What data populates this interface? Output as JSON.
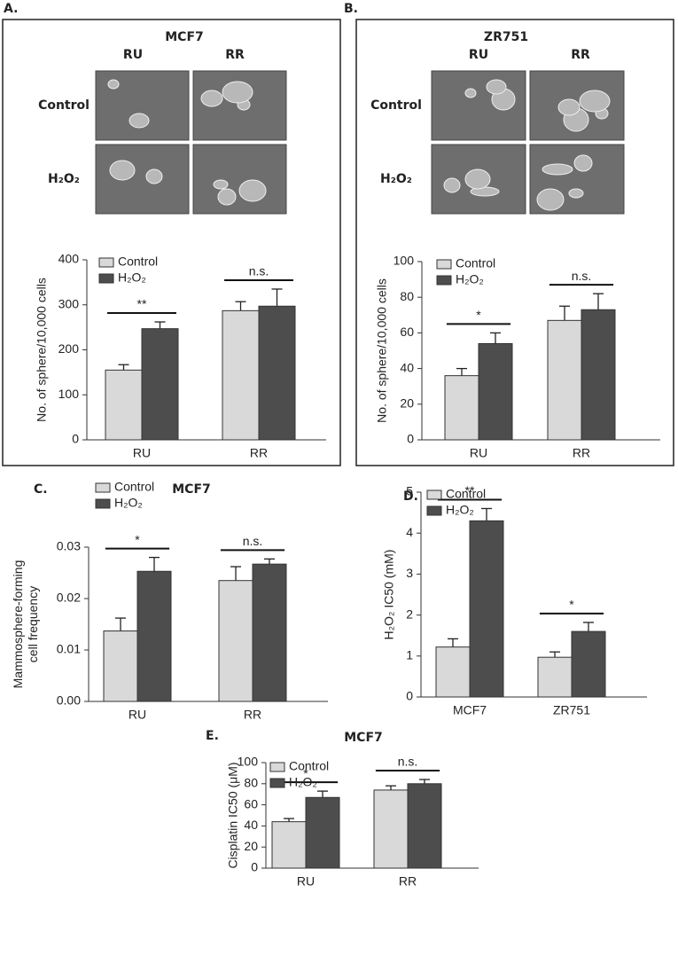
{
  "chart_data": [
    {
      "type": "bar",
      "panel": "A.",
      "title": "MCF7",
      "ylabel": [
        "No. of sphere/10,000 cells"
      ],
      "image_cols": [
        "RU",
        "RR"
      ],
      "image_rows": [
        "Control",
        "H₂O₂"
      ],
      "categories": [
        "RU",
        "RR"
      ],
      "series": [
        {
          "name": "Control",
          "color": "#d9d9d9",
          "values": [
            155,
            287
          ],
          "errors": [
            12,
            20
          ]
        },
        {
          "name": "H₂O₂",
          "color": "#4d4d4d",
          "values": [
            247,
            297
          ],
          "errors": [
            15,
            38
          ]
        }
      ],
      "annotations": [
        "**",
        "n.s."
      ],
      "ylim": [
        0,
        400
      ],
      "yticks": [
        0,
        100,
        200,
        300,
        400
      ]
    },
    {
      "type": "bar",
      "panel": "B.",
      "title": "ZR751",
      "ylabel": [
        "No. of sphere/10,000 cells"
      ],
      "image_cols": [
        "RU",
        "RR"
      ],
      "image_rows": [
        "Control",
        "H₂O₂"
      ],
      "categories": [
        "RU",
        "RR"
      ],
      "series": [
        {
          "name": "Control",
          "color": "#d9d9d9",
          "values": [
            36,
            67
          ],
          "errors": [
            4,
            8
          ]
        },
        {
          "name": "H₂O₂",
          "color": "#4d4d4d",
          "values": [
            54,
            73
          ],
          "errors": [
            6,
            9
          ]
        }
      ],
      "annotations": [
        "*",
        "n.s."
      ],
      "ylim": [
        0,
        100
      ],
      "yticks": [
        0,
        20,
        40,
        60,
        80,
        100
      ]
    },
    {
      "type": "bar",
      "panel": "C.",
      "title": "MCF7",
      "ylabel": [
        "Mammosphere-forming",
        "cell frequency"
      ],
      "categories": [
        "RU",
        "RR"
      ],
      "series": [
        {
          "name": "Control",
          "color": "#d9d9d9",
          "values": [
            0.0137,
            0.0235
          ],
          "errors": [
            0.0025,
            0.0027
          ]
        },
        {
          "name": "H₂O₂",
          "color": "#4d4d4d",
          "values": [
            0.0253,
            0.0267
          ],
          "errors": [
            0.0027,
            0.001
          ]
        }
      ],
      "annotations": [
        "*",
        "n.s."
      ],
      "ylim": [
        0,
        0.03
      ],
      "yticks": [
        {
          "value": 0,
          "label": "0.00"
        },
        0.01,
        0.02,
        0.03
      ]
    },
    {
      "type": "bar",
      "panel": "D.",
      "ylabel": [
        "H₂O₂ IC50 (mM)"
      ],
      "categories": [
        "MCF7",
        "ZR751"
      ],
      "series": [
        {
          "name": "Control",
          "color": "#d9d9d9",
          "values": [
            1.22,
            0.97
          ],
          "errors": [
            0.2,
            0.13
          ]
        },
        {
          "name": "H₂O₂",
          "color": "#4d4d4d",
          "values": [
            4.3,
            1.6
          ],
          "errors": [
            0.3,
            0.22
          ]
        }
      ],
      "annotations": [
        "**",
        "*"
      ],
      "ylim": [
        0,
        5
      ],
      "yticks": [
        0,
        1,
        2,
        3,
        4,
        5
      ]
    },
    {
      "type": "bar",
      "panel": "E.",
      "title": "MCF7",
      "ylabel": [
        "Cisplatin IC50 (μM)"
      ],
      "categories": [
        "RU",
        "RR"
      ],
      "series": [
        {
          "name": "Control",
          "color": "#d9d9d9",
          "values": [
            44,
            74
          ],
          "errors": [
            3,
            4
          ]
        },
        {
          "name": "H₂O₂",
          "color": "#4d4d4d",
          "values": [
            67,
            80
          ],
          "errors": [
            6,
            4
          ]
        }
      ],
      "annotations": [
        "*",
        "n.s."
      ],
      "ylim": [
        0,
        100
      ],
      "yticks": [
        0,
        20,
        40,
        60,
        80,
        100
      ]
    }
  ]
}
